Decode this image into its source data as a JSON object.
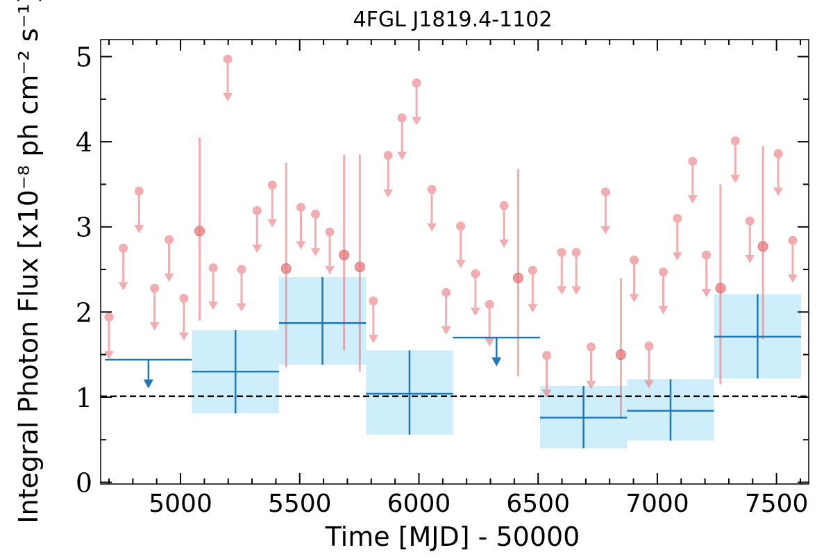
{
  "chart_data": {
    "type": "scatter",
    "title": "4FGL J1819.4-1102",
    "xlabel": "Time [MJD] - 50000",
    "ylabel": "Integral Photon Flux [x10⁻⁸ ph cm⁻² s⁻¹]",
    "xlim": [
      4665,
      7635
    ],
    "ylim": [
      -0.02,
      5.2
    ],
    "x_ticks": [
      5000,
      5500,
      6000,
      6500,
      7000,
      7500
    ],
    "y_ticks": [
      0,
      1,
      2,
      3,
      4,
      5
    ],
    "reference_line": {
      "y": 1.01,
      "style": "dashed",
      "color": "#000000"
    },
    "colors": {
      "fine_bins": "#e8787c",
      "coarse_bins": "#1f77b4",
      "coarse_band": "#cfeefc"
    },
    "series": [
      {
        "label": "",
        "bin_width_days": 60,
        "detections": [
          {
            "x": 5080,
            "y": 2.95,
            "ylo": 1.9,
            "yhi": 4.05
          },
          {
            "x": 5443,
            "y": 2.51,
            "ylo": 1.35,
            "yhi": 3.75
          },
          {
            "x": 5686,
            "y": 2.67,
            "ylo": 1.55,
            "yhi": 3.85
          },
          {
            "x": 5752,
            "y": 2.53,
            "ylo": 1.3,
            "yhi": 3.85
          },
          {
            "x": 6416,
            "y": 2.4,
            "ylo": 1.25,
            "yhi": 3.68
          },
          {
            "x": 6847,
            "y": 1.5,
            "ylo": 0.75,
            "yhi": 2.4
          },
          {
            "x": 7265,
            "y": 2.28,
            "ylo": 1.15,
            "yhi": 3.5
          },
          {
            "x": 7443,
            "y": 2.77,
            "ylo": 1.68,
            "yhi": 3.95
          }
        ],
        "upper_limits": [
          {
            "x": 4700,
            "y": 1.94
          },
          {
            "x": 4760,
            "y": 2.75
          },
          {
            "x": 4826,
            "y": 3.42
          },
          {
            "x": 4891,
            "y": 2.28
          },
          {
            "x": 4952,
            "y": 2.85
          },
          {
            "x": 5014,
            "y": 2.16
          },
          {
            "x": 5137,
            "y": 2.52
          },
          {
            "x": 5198,
            "y": 4.97
          },
          {
            "x": 5256,
            "y": 2.5
          },
          {
            "x": 5321,
            "y": 3.19
          },
          {
            "x": 5385,
            "y": 3.49
          },
          {
            "x": 5505,
            "y": 3.23
          },
          {
            "x": 5566,
            "y": 3.15
          },
          {
            "x": 5626,
            "y": 2.94
          },
          {
            "x": 5809,
            "y": 2.13
          },
          {
            "x": 5871,
            "y": 3.84
          },
          {
            "x": 5929,
            "y": 4.28
          },
          {
            "x": 5990,
            "y": 4.69
          },
          {
            "x": 6054,
            "y": 3.44
          },
          {
            "x": 6114,
            "y": 2.23
          },
          {
            "x": 6175,
            "y": 3.01
          },
          {
            "x": 6237,
            "y": 2.45
          },
          {
            "x": 6296,
            "y": 2.09
          },
          {
            "x": 6357,
            "y": 3.25
          },
          {
            "x": 6477,
            "y": 2.49
          },
          {
            "x": 6536,
            "y": 1.49
          },
          {
            "x": 6599,
            "y": 2.7
          },
          {
            "x": 6660,
            "y": 2.7
          },
          {
            "x": 6722,
            "y": 1.59
          },
          {
            "x": 6783,
            "y": 3.41
          },
          {
            "x": 6903,
            "y": 2.61
          },
          {
            "x": 6965,
            "y": 1.6
          },
          {
            "x": 7025,
            "y": 2.47
          },
          {
            "x": 7084,
            "y": 3.1
          },
          {
            "x": 7148,
            "y": 3.77
          },
          {
            "x": 7206,
            "y": 2.67
          },
          {
            "x": 7327,
            "y": 4.01
          },
          {
            "x": 7388,
            "y": 3.07
          },
          {
            "x": 7507,
            "y": 3.86
          },
          {
            "x": 7568,
            "y": 2.84
          }
        ]
      },
      {
        "label": "",
        "bin_width_days": 365,
        "detections": [
          {
            "x0": 5048,
            "x1": 5413,
            "y": 1.3,
            "ylo": 0.81,
            "yhi": 1.79
          },
          {
            "x0": 5413,
            "x1": 5778,
            "y": 1.87,
            "ylo": 1.38,
            "yhi": 2.41
          },
          {
            "x0": 5778,
            "x1": 6143,
            "y": 1.04,
            "ylo": 0.56,
            "yhi": 1.55
          },
          {
            "x0": 6508,
            "x1": 6873,
            "y": 0.76,
            "ylo": 0.4,
            "yhi": 1.13
          },
          {
            "x0": 6873,
            "x1": 7238,
            "y": 0.84,
            "ylo": 0.49,
            "yhi": 1.21
          },
          {
            "x0": 7238,
            "x1": 7603,
            "y": 1.71,
            "ylo": 1.22,
            "yhi": 2.21
          }
        ],
        "upper_limits": [
          {
            "x0": 4683,
            "x1": 5048,
            "y": 1.44
          },
          {
            "x0": 6143,
            "x1": 6508,
            "y": 1.7
          }
        ]
      }
    ]
  }
}
